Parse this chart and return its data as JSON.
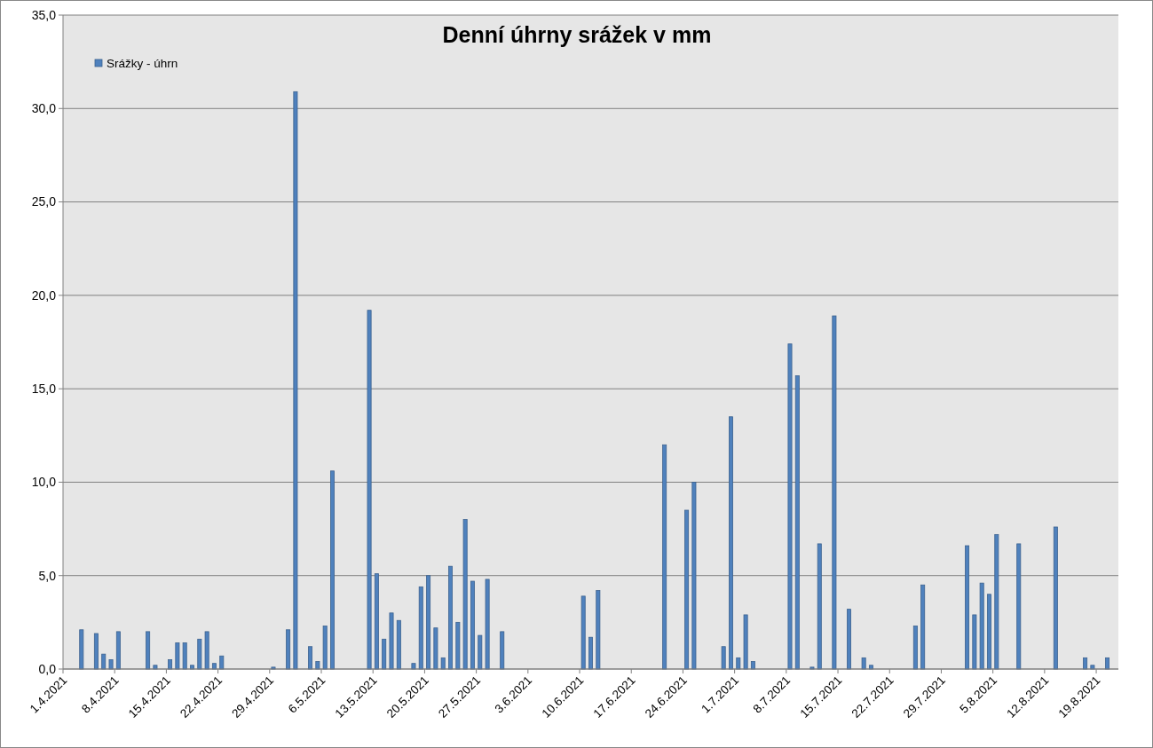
{
  "chart_data": {
    "type": "bar",
    "title": "Denní úhrny srážek v mm",
    "categories": [
      "1.4.2021",
      null,
      null,
      null,
      null,
      null,
      null,
      "8.4.2021",
      null,
      null,
      null,
      null,
      null,
      null,
      "15.4.2021",
      null,
      null,
      null,
      null,
      null,
      null,
      "22.4.2021",
      null,
      null,
      null,
      null,
      null,
      null,
      "29.4.2021",
      null,
      null,
      null,
      null,
      null,
      null,
      "6.5.2021",
      null,
      null,
      null,
      null,
      null,
      null,
      "13.5.2021",
      null,
      null,
      null,
      null,
      null,
      null,
      "20.5.2021",
      null,
      null,
      null,
      null,
      null,
      null,
      "27.5.2021",
      null,
      null,
      null,
      null,
      null,
      null,
      "3.6.2021",
      null,
      null,
      null,
      null,
      null,
      null,
      "10.6.2021",
      null,
      null,
      null,
      null,
      null,
      null,
      "17.6.2021",
      null,
      null,
      null,
      null,
      null,
      null,
      "24.6.2021",
      null,
      null,
      null,
      null,
      null,
      null,
      "1.7.2021",
      null,
      null,
      null,
      null,
      null,
      null,
      "8.7.2021",
      null,
      null,
      null,
      null,
      null,
      null,
      "15.7.2021",
      null,
      null,
      null,
      null,
      null,
      null,
      "22.7.2021",
      null,
      null,
      null,
      null,
      null,
      null,
      "29.7.2021",
      null,
      null,
      null,
      null,
      null,
      null,
      "5.8.2021",
      null,
      null,
      null,
      null,
      null,
      null,
      "12.8.2021",
      null,
      null,
      null,
      null,
      null,
      null,
      "19.8.2021",
      null,
      null
    ],
    "series": [
      {
        "name": "Srážky - úhrn",
        "color": "#4f81bd",
        "values": [
          0,
          0,
          2.1,
          0,
          1.9,
          0.8,
          0.5,
          2.0,
          0,
          0,
          0,
          2.0,
          0.2,
          0,
          0.5,
          1.4,
          1.4,
          0.2,
          1.6,
          2.0,
          0.3,
          0.7,
          0,
          0,
          0,
          0,
          0,
          0,
          0.1,
          0,
          2.1,
          30.9,
          0,
          1.2,
          0.4,
          2.3,
          10.6,
          0,
          0,
          0,
          0,
          19.2,
          5.1,
          1.6,
          3.0,
          2.6,
          0,
          0.3,
          4.4,
          5.0,
          2.2,
          0.6,
          5.5,
          2.5,
          8.0,
          4.7,
          1.8,
          4.8,
          0,
          2.0,
          0,
          0,
          0,
          0,
          0,
          0,
          0,
          0,
          0,
          0,
          3.9,
          1.7,
          4.2,
          0,
          0,
          0,
          0,
          0,
          0,
          0,
          0,
          12.0,
          0,
          0,
          8.5,
          10.0,
          0,
          0,
          0,
          1.2,
          13.5,
          0.6,
          2.9,
          0.4,
          0,
          0,
          0,
          0,
          17.4,
          15.7,
          0,
          0.1,
          6.7,
          0,
          18.9,
          0,
          3.2,
          0,
          0.6,
          0.2,
          0,
          0,
          0,
          0,
          0,
          2.3,
          4.5,
          0,
          0,
          0,
          0,
          0,
          6.6,
          2.9,
          4.6,
          4.0,
          7.2,
          0,
          0,
          6.7,
          0,
          0,
          0,
          0,
          7.6,
          0,
          0,
          0,
          0.6,
          0.2,
          0,
          0.6,
          0
        ]
      }
    ],
    "ylim": [
      0,
      35
    ],
    "yticks": [
      {
        "value": 0,
        "label": "0,0"
      },
      {
        "value": 5,
        "label": "5,0"
      },
      {
        "value": 10,
        "label": "10,0"
      },
      {
        "value": 15,
        "label": "15,0"
      },
      {
        "value": 20,
        "label": "20,0"
      },
      {
        "value": 25,
        "label": "25,0"
      },
      {
        "value": 30,
        "label": "30,0"
      },
      {
        "value": 35,
        "label": "35,0"
      }
    ],
    "grid": "y",
    "legend": "top left"
  }
}
